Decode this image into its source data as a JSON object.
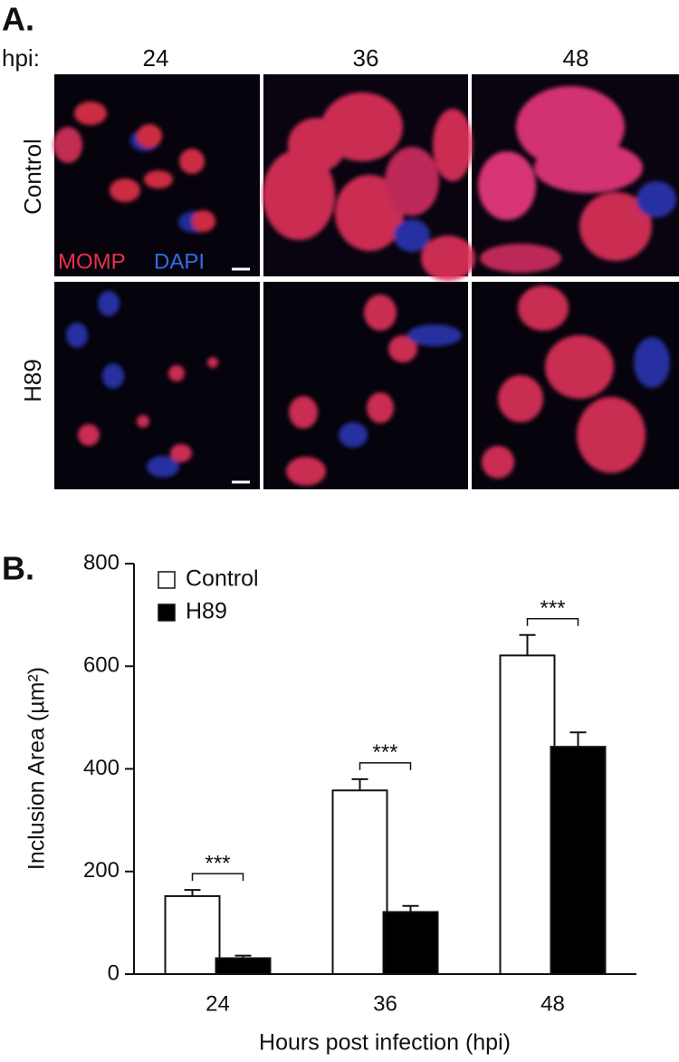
{
  "panel_a": {
    "label": "A.",
    "hpi_label": "hpi:",
    "columns": [
      "24",
      "36",
      "48"
    ],
    "rows": [
      "Control",
      "H89"
    ],
    "stain_1": "MOMP",
    "stain_2": "DAPI"
  },
  "chart_data": {
    "type": "bar",
    "panel_label": "B.",
    "y_label": "Inclusion Area (µm²)",
    "x_label": "Hours post infection (hpi)",
    "categories": [
      "24",
      "36",
      "48"
    ],
    "series": [
      {
        "name": "Control",
        "color": "#ffffff",
        "values": [
          152,
          358,
          621
        ],
        "errors": [
          12,
          22,
          40
        ]
      },
      {
        "name": "H89",
        "color": "#000000",
        "values": [
          31,
          121,
          443
        ],
        "errors": [
          5,
          12,
          28
        ]
      }
    ],
    "annotations": [
      "***",
      "***",
      "***"
    ],
    "ylim": [
      0,
      800
    ],
    "yticks": [
      0,
      200,
      400,
      600,
      800
    ],
    "legend": "upper left"
  }
}
